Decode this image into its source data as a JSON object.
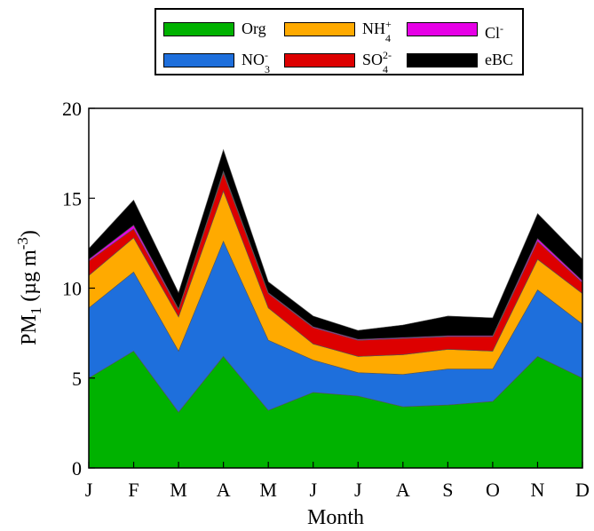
{
  "chart_data": {
    "type": "area",
    "stacked": true,
    "categories": [
      "J",
      "F",
      "M",
      "A",
      "M",
      "J",
      "J",
      "A",
      "S",
      "O",
      "N",
      "D"
    ],
    "xlabel": "Month",
    "ylabel": {
      "base": "PM",
      "sub": "1",
      "units_pre": " (µg m",
      "units_sup": "-3",
      "units_post": ")"
    },
    "ylim": [
      0,
      20
    ],
    "yticks": [
      0,
      5,
      10,
      15,
      20
    ],
    "grid": false,
    "legend_position": "top",
    "series": [
      {
        "name": "Org",
        "color": "#00b200",
        "values": [
          5.0,
          6.5,
          3.1,
          6.2,
          3.2,
          4.2,
          4.0,
          3.4,
          3.5,
          3.7,
          6.2,
          5.0
        ]
      },
      {
        "name": "NO3-",
        "color": "#1e6fdc",
        "values": [
          3.9,
          4.4,
          3.4,
          6.4,
          3.9,
          1.8,
          1.3,
          1.8,
          2.0,
          1.8,
          3.7,
          3.0
        ]
      },
      {
        "name": "NH4+",
        "color": "#ffaa00",
        "values": [
          1.8,
          1.9,
          1.9,
          2.8,
          1.8,
          0.9,
          0.9,
          1.1,
          1.1,
          1.0,
          1.7,
          1.7
        ]
      },
      {
        "name": "SO42-",
        "color": "#dd0000",
        "values": [
          0.8,
          0.5,
          0.4,
          1.0,
          0.8,
          0.9,
          0.9,
          0.9,
          0.7,
          0.8,
          1.0,
          0.6
        ]
      },
      {
        "name": "Cl-",
        "color": "#e600e6",
        "values": [
          0.1,
          0.2,
          0.05,
          0.1,
          0.05,
          0.05,
          0.05,
          0.05,
          0.05,
          0.05,
          0.15,
          0.1
        ]
      },
      {
        "name": "eBC",
        "color": "#000000",
        "values": [
          0.6,
          1.4,
          0.9,
          1.2,
          0.6,
          0.6,
          0.5,
          0.7,
          1.1,
          1.0,
          1.4,
          1.2
        ]
      }
    ],
    "legend": [
      {
        "key": "org",
        "label": "Org",
        "color": "#00b200"
      },
      {
        "key": "nh4",
        "label": "NH",
        "sub": "4",
        "sup": "+",
        "color": "#ffaa00"
      },
      {
        "key": "cl",
        "label": "Cl",
        "sup": "-",
        "color": "#e600e6"
      },
      {
        "key": "no3",
        "label": "NO",
        "sub": "3",
        "sup": "-",
        "color": "#1e6fdc"
      },
      {
        "key": "so4",
        "label": "SO",
        "sub": "4",
        "sup": "2-",
        "color": "#dd0000"
      },
      {
        "key": "ebc",
        "label": "eBC",
        "color": "#000000"
      }
    ]
  }
}
